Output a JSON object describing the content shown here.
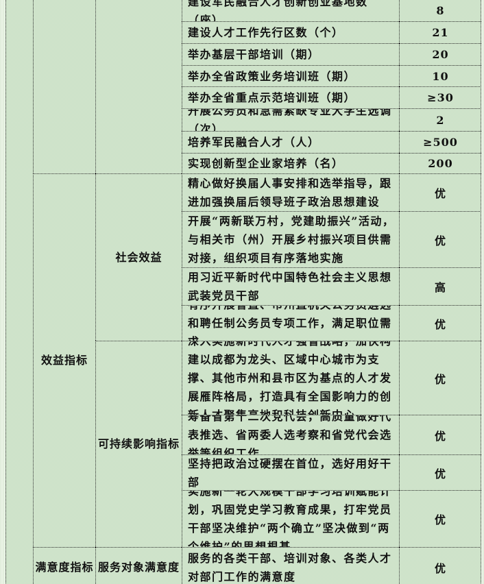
{
  "colors": {
    "page_bg": "#e5f0e1",
    "table_bg": "#cfe3cb",
    "border": "#2b2b2b",
    "text": "#111111"
  },
  "table": {
    "section_labels": {
      "benefit": "效益指标",
      "satisfaction": "满意度指标",
      "social_benefit": "社会效益",
      "sustainable_impact": "可持续影响指标",
      "service_satisfaction": "服务对象满意度"
    },
    "rows": [
      {
        "text": "建设军民融合人才创新创业基地数（座）",
        "value": "8"
      },
      {
        "text": "建设人才工作先行区数（个）",
        "value": "21"
      },
      {
        "text": "举办基层干部培训（期）",
        "value": "20"
      },
      {
        "text": "举办全省政策业务培训班（期）",
        "value": "10"
      },
      {
        "text": "举办全省重点示范培训班（期）",
        "value": "≥30"
      },
      {
        "text": "开展公务员和急需紧缺专业大学生选调（次）",
        "value": "2"
      },
      {
        "text": "培养军民融合人才（人）",
        "value": "≥500"
      },
      {
        "text": "实现创新型企业家培养（名）",
        "value": "200"
      },
      {
        "text": "精心做好换届人事安排和选举指导，跟进加强换届后领导班子政治思想建设",
        "value": "优"
      },
      {
        "text": "开展“两新联万村，党建助振兴”活动，与相关市（州）开展乡村振兴项目供需对接，组织项目有序落地实施",
        "value": "优"
      },
      {
        "text": "用习近平新时代中国特色社会主义思想武装党员干部",
        "value": "高"
      },
      {
        "text": "有序开展省直、市州直机关公务员遴选和聘任制公务员专项工作，满足职位需求",
        "value": "优"
      },
      {
        "text": "深入实施新时代人才强省战略，加快构建以成都为龙头、区域中心城市为支撑、其他市州和县市区为基点的人才发展雁阵格局，打造具有全国影响力的创新人才聚集高地和科技创新中心。",
        "value": "优"
      },
      {
        "text": "筹备省第十二次党代会，高质量做好代表推选、省两委人选考察和省党代会选举等组织工作",
        "value": "优"
      },
      {
        "text": "坚持把政治过硬摆在首位，选好用好干部",
        "value": "优"
      },
      {
        "text": "实施新一轮大规模干部学习培训赋能计划，巩固党史学习教育成果，打牢党员干部坚决维护“两个确立”坚决做到“两个维护”的思想根基。",
        "value": "优"
      },
      {
        "text": "服务的各类干部、培训对象、各类人才对部门工作的满意度",
        "value": "优"
      }
    ]
  }
}
